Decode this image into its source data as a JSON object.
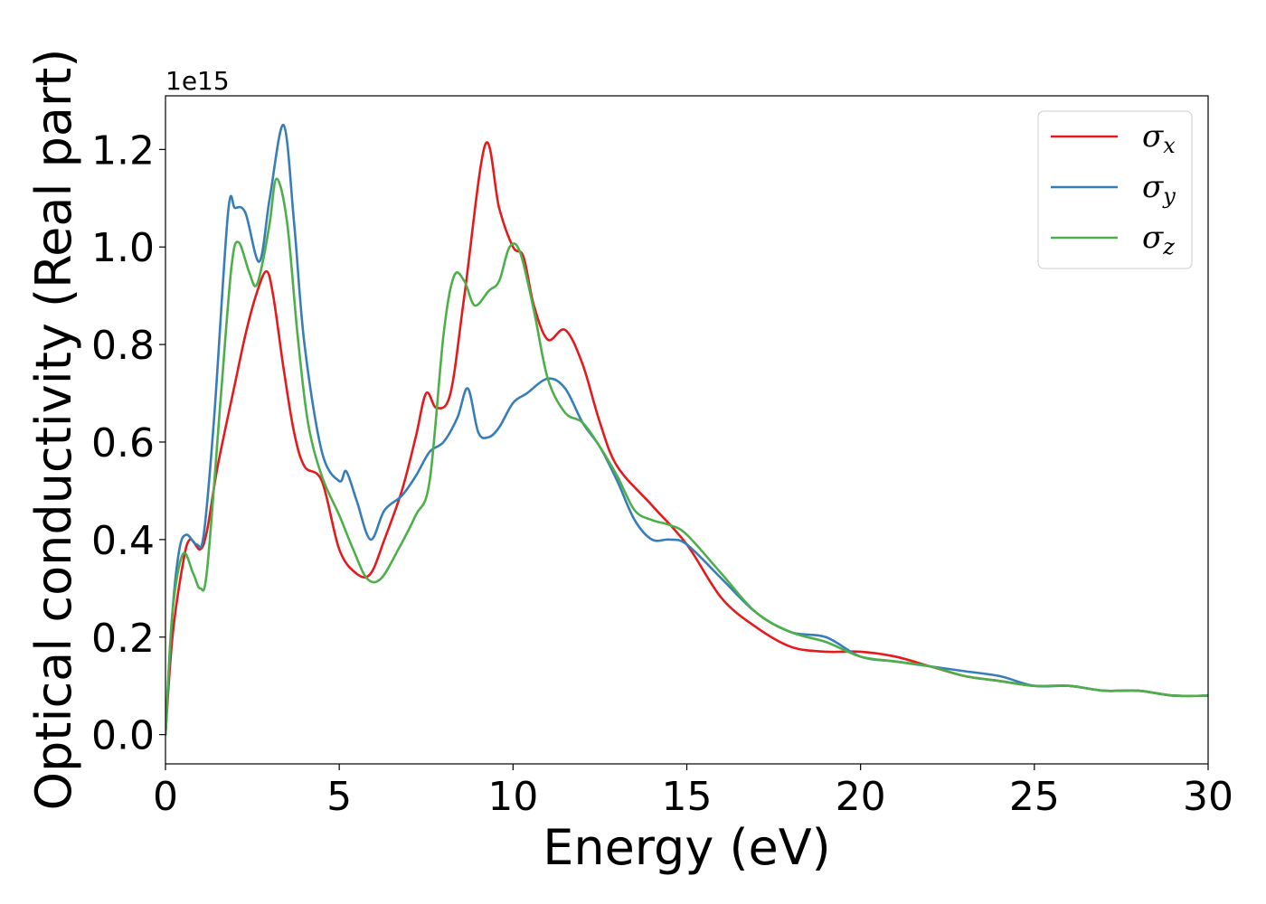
{
  "chart_data": {
    "type": "line",
    "xlabel": "Energy (eV)",
    "ylabel": "Optical conductivity (Real part)",
    "y_offset_text": "1e15",
    "xlim": [
      0,
      30
    ],
    "ylim": [
      -0.06,
      1.31
    ],
    "y_scale_multiplier": 1000000000000000.0,
    "x_ticks": [
      0,
      5,
      10,
      15,
      20,
      25,
      30
    ],
    "x_tick_labels": [
      "0",
      "5",
      "10",
      "15",
      "20",
      "25",
      "30"
    ],
    "y_ticks": [
      0.0,
      0.2,
      0.4,
      0.6,
      0.8,
      1.0,
      1.2
    ],
    "y_tick_labels": [
      "0.0",
      "0.2",
      "0.4",
      "0.6",
      "0.8",
      "1.0",
      "1.2"
    ],
    "grid": false,
    "legend_position": "top-right",
    "series": [
      {
        "name": "σx",
        "legend_symbol": "σ",
        "legend_subscript": "x",
        "color": "#e41a1c",
        "x": [
          0,
          0.2,
          0.5,
          0.7,
          1.0,
          1.2,
          1.5,
          2.0,
          2.3,
          2.6,
          2.9,
          3.1,
          3.4,
          3.7,
          4.0,
          4.5,
          5.0,
          5.5,
          5.9,
          6.3,
          6.8,
          7.2,
          7.5,
          7.8,
          8.2,
          8.6,
          9.2,
          9.6,
          10.0,
          10.3,
          10.6,
          11.0,
          11.5,
          12.0,
          12.5,
          13.0,
          14.0,
          15.0,
          16.0,
          17.0,
          18.0,
          19.0,
          20.0,
          21.0,
          22.0,
          23.0,
          24.0,
          25.0,
          26.0,
          27.0,
          28.0,
          29.0,
          30.0
        ],
        "values": [
          0.0,
          0.2,
          0.35,
          0.4,
          0.38,
          0.42,
          0.55,
          0.72,
          0.82,
          0.9,
          0.95,
          0.9,
          0.75,
          0.62,
          0.55,
          0.52,
          0.38,
          0.33,
          0.33,
          0.4,
          0.5,
          0.61,
          0.7,
          0.67,
          0.7,
          0.9,
          1.21,
          1.08,
          1.0,
          0.98,
          0.88,
          0.81,
          0.83,
          0.76,
          0.64,
          0.55,
          0.47,
          0.39,
          0.28,
          0.22,
          0.18,
          0.17,
          0.17,
          0.16,
          0.14,
          0.12,
          0.11,
          0.1,
          0.1,
          0.09,
          0.09,
          0.08,
          0.08
        ]
      },
      {
        "name": "σy",
        "legend_symbol": "σ",
        "legend_subscript": "y",
        "color": "#377eb8",
        "x": [
          0,
          0.2,
          0.4,
          0.6,
          0.9,
          1.1,
          1.4,
          1.8,
          2.0,
          2.3,
          2.7,
          3.0,
          3.4,
          3.7,
          4.0,
          4.5,
          5.0,
          5.2,
          5.5,
          5.9,
          6.3,
          6.8,
          7.2,
          7.6,
          8.0,
          8.4,
          8.7,
          9.0,
          9.3,
          9.6,
          10.0,
          10.4,
          11.0,
          11.5,
          12.0,
          12.5,
          13.0,
          13.5,
          14.0,
          14.5,
          15.0,
          16.0,
          17.0,
          18.0,
          19.0,
          20.0,
          21.0,
          22.0,
          23.0,
          24.0,
          25.0,
          26.0,
          27.0,
          28.0,
          29.0,
          30.0
        ],
        "values": [
          0.0,
          0.25,
          0.38,
          0.41,
          0.39,
          0.41,
          0.65,
          1.07,
          1.08,
          1.07,
          0.97,
          1.1,
          1.25,
          1.05,
          0.8,
          0.58,
          0.52,
          0.54,
          0.48,
          0.4,
          0.46,
          0.49,
          0.53,
          0.58,
          0.6,
          0.65,
          0.71,
          0.62,
          0.61,
          0.63,
          0.68,
          0.7,
          0.73,
          0.71,
          0.64,
          0.59,
          0.52,
          0.44,
          0.4,
          0.4,
          0.39,
          0.32,
          0.25,
          0.21,
          0.2,
          0.16,
          0.15,
          0.14,
          0.13,
          0.12,
          0.1,
          0.1,
          0.09,
          0.09,
          0.08,
          0.08
        ]
      },
      {
        "name": "σz",
        "legend_symbol": "σ",
        "legend_subscript": "z",
        "color": "#4daf4a",
        "x": [
          0,
          0.2,
          0.5,
          0.8,
          1.0,
          1.2,
          1.6,
          1.9,
          2.1,
          2.4,
          2.6,
          2.8,
          3.0,
          3.2,
          3.5,
          3.8,
          4.1,
          4.5,
          5.0,
          5.4,
          5.8,
          6.2,
          6.7,
          7.2,
          7.6,
          8.0,
          8.3,
          8.6,
          8.9,
          9.3,
          9.6,
          9.9,
          10.2,
          10.6,
          11.0,
          11.5,
          12.0,
          12.5,
          13.0,
          13.5,
          14.0,
          14.5,
          15.0,
          16.0,
          17.0,
          18.0,
          19.0,
          20.0,
          21.0,
          22.0,
          23.0,
          24.0,
          25.0,
          26.0,
          27.0,
          28.0,
          29.0,
          30.0
        ],
        "values": [
          0.0,
          0.25,
          0.37,
          0.33,
          0.3,
          0.34,
          0.7,
          0.96,
          1.01,
          0.95,
          0.92,
          0.97,
          1.05,
          1.14,
          1.05,
          0.82,
          0.64,
          0.53,
          0.45,
          0.38,
          0.32,
          0.32,
          0.38,
          0.45,
          0.52,
          0.82,
          0.94,
          0.93,
          0.88,
          0.91,
          0.93,
          1.0,
          0.99,
          0.87,
          0.73,
          0.66,
          0.64,
          0.59,
          0.53,
          0.46,
          0.44,
          0.43,
          0.41,
          0.33,
          0.25,
          0.21,
          0.19,
          0.16,
          0.15,
          0.14,
          0.12,
          0.11,
          0.1,
          0.1,
          0.09,
          0.09,
          0.08,
          0.08
        ]
      }
    ]
  }
}
